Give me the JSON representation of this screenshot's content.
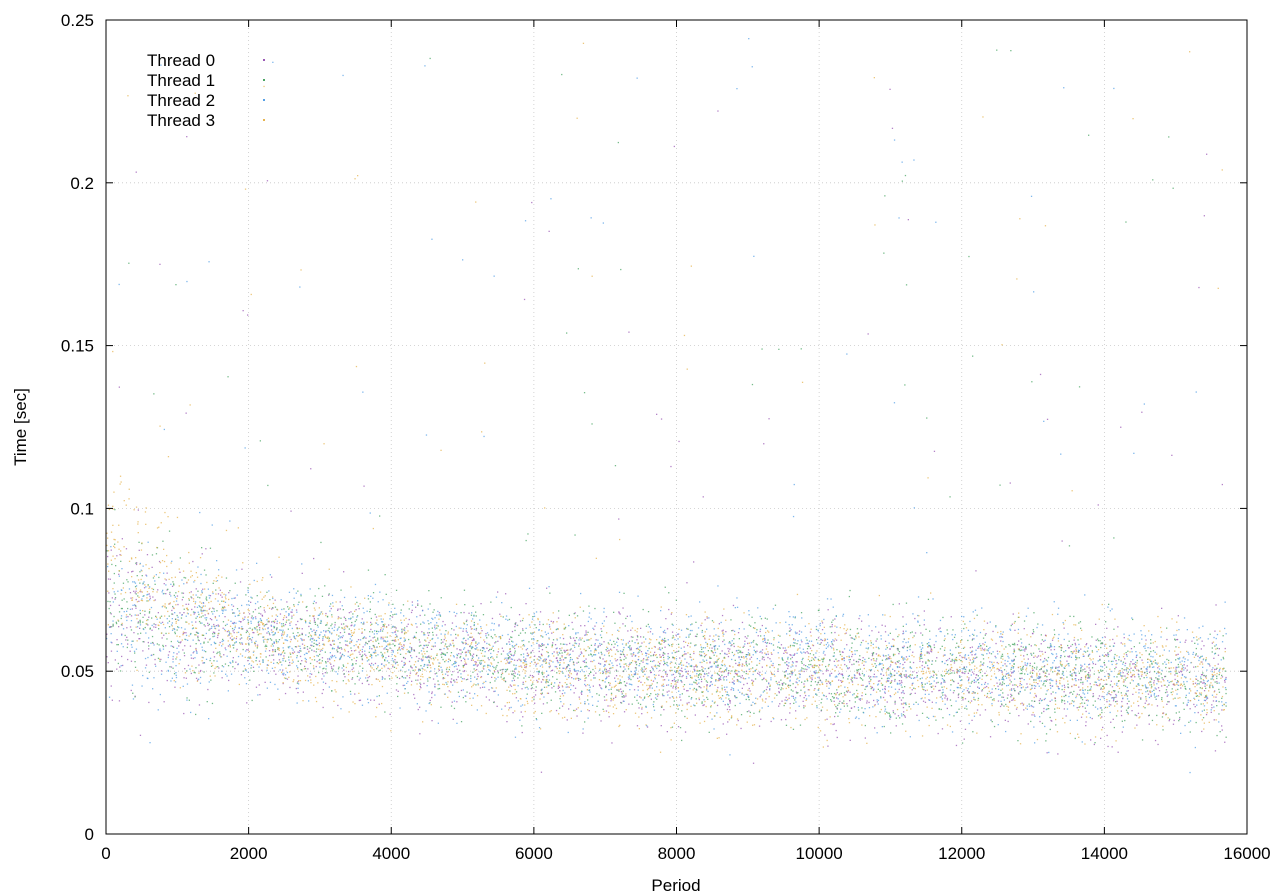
{
  "chart_data": {
    "type": "scatter",
    "title": "",
    "xlabel": "Period",
    "ylabel": "Time [sec]",
    "xlim": [
      0,
      16000
    ],
    "ylim": [
      0,
      0.25
    ],
    "xticks": [
      0,
      2000,
      4000,
      6000,
      8000,
      10000,
      12000,
      14000,
      16000
    ],
    "yticks": [
      0,
      0.05,
      0.1,
      0.15,
      0.2,
      0.25
    ],
    "xtick_labels": [
      "0",
      "2000",
      "4000",
      "6000",
      "8000",
      "10000",
      "12000",
      "14000",
      "16000"
    ],
    "ytick_labels": [
      "0",
      "0.05",
      "0.1",
      "0.15",
      "0.2",
      "0.25"
    ],
    "grid": true,
    "legend_position": "top-left",
    "series": [
      {
        "name": "Thread 0",
        "color": "#9b59b6",
        "trend": [
          [
            0,
            0.068
          ],
          [
            1000,
            0.064
          ],
          [
            2000,
            0.06
          ],
          [
            4000,
            0.056
          ],
          [
            6000,
            0.052
          ],
          [
            8000,
            0.051
          ],
          [
            10000,
            0.05
          ],
          [
            12000,
            0.049
          ],
          [
            14000,
            0.048
          ],
          [
            15700,
            0.047
          ]
        ]
      },
      {
        "name": "Thread 1",
        "color": "#4aa564",
        "trend": [
          [
            0,
            0.07
          ],
          [
            1000,
            0.066
          ],
          [
            2000,
            0.062
          ],
          [
            4000,
            0.057
          ],
          [
            6000,
            0.053
          ],
          [
            8000,
            0.052
          ],
          [
            10000,
            0.051
          ],
          [
            12000,
            0.05
          ],
          [
            14000,
            0.049
          ],
          [
            15700,
            0.048
          ]
        ]
      },
      {
        "name": "Thread 2",
        "color": "#56a0e6",
        "trend": [
          [
            0,
            0.066
          ],
          [
            1000,
            0.063
          ],
          [
            2000,
            0.061
          ],
          [
            4000,
            0.058
          ],
          [
            6000,
            0.054
          ],
          [
            8000,
            0.053
          ],
          [
            10000,
            0.052
          ],
          [
            12000,
            0.051
          ],
          [
            14000,
            0.05
          ],
          [
            15700,
            0.049
          ]
        ]
      },
      {
        "name": "Thread 3",
        "color": "#e6b450",
        "trend": [
          [
            0,
            0.088
          ],
          [
            500,
            0.08
          ],
          [
            1000,
            0.07
          ],
          [
            2000,
            0.062
          ],
          [
            4000,
            0.055
          ],
          [
            6000,
            0.052
          ],
          [
            8000,
            0.05
          ],
          [
            10000,
            0.05
          ],
          [
            12000,
            0.049
          ],
          [
            14000,
            0.048
          ],
          [
            15700,
            0.047
          ]
        ]
      }
    ]
  }
}
